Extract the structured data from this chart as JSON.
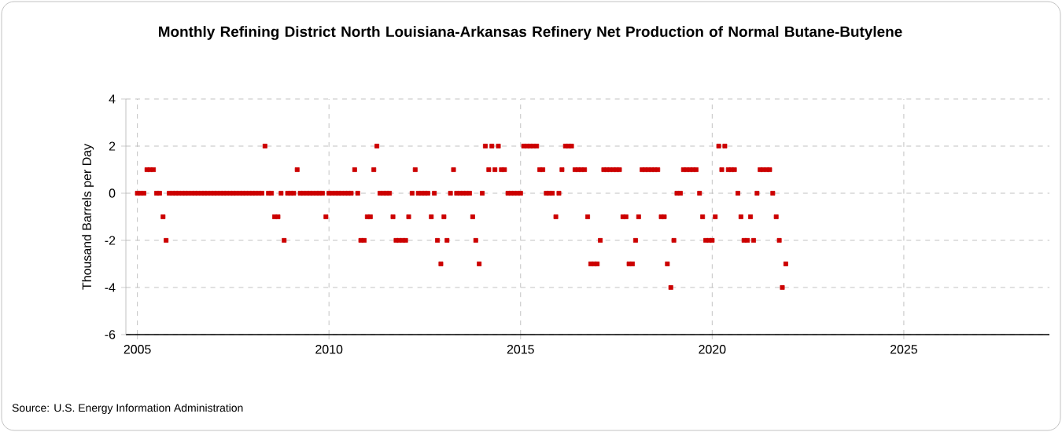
{
  "chart_data": {
    "type": "scatter",
    "title": "Monthly Refining District North Louisiana-Arkansas Refinery Net Production of Normal Butane-Butylene",
    "ylabel": "Thousand Barrels per Day",
    "annotations": [
      "Source: U.S. Energy Information Administration"
    ],
    "x": [
      2005.0,
      2005.08,
      2005.17,
      2005.25,
      2005.33,
      2005.42,
      2005.5,
      2005.58,
      2005.67,
      2005.75,
      2005.83,
      2005.92,
      2006.0,
      2006.08,
      2006.17,
      2006.25,
      2006.33,
      2006.42,
      2006.5,
      2006.58,
      2006.67,
      2006.75,
      2006.83,
      2006.92,
      2007.0,
      2007.08,
      2007.17,
      2007.25,
      2007.33,
      2007.42,
      2007.5,
      2007.58,
      2007.67,
      2007.75,
      2007.83,
      2007.92,
      2008.0,
      2008.08,
      2008.17,
      2008.25,
      2008.33,
      2008.42,
      2008.5,
      2008.58,
      2008.67,
      2008.75,
      2008.83,
      2008.92,
      2009.0,
      2009.08,
      2009.17,
      2009.25,
      2009.33,
      2009.42,
      2009.5,
      2009.58,
      2009.67,
      2009.75,
      2009.83,
      2009.92,
      2010.0,
      2010.08,
      2010.17,
      2010.25,
      2010.33,
      2010.42,
      2010.5,
      2010.58,
      2010.67,
      2010.75,
      2010.83,
      2010.92,
      2011.0,
      2011.08,
      2011.17,
      2011.25,
      2011.33,
      2011.42,
      2011.5,
      2011.58,
      2011.67,
      2011.75,
      2011.83,
      2011.92,
      2012.0,
      2012.08,
      2012.17,
      2012.25,
      2012.33,
      2012.42,
      2012.5,
      2012.58,
      2012.67,
      2012.75,
      2012.83,
      2012.92,
      2013.0,
      2013.08,
      2013.17,
      2013.25,
      2013.33,
      2013.42,
      2013.5,
      2013.58,
      2013.67,
      2013.75,
      2013.83,
      2013.92,
      2014.0,
      2014.08,
      2014.17,
      2014.25,
      2014.33,
      2014.42,
      2014.5,
      2014.58,
      2014.67,
      2014.75,
      2014.83,
      2014.92,
      2015.0,
      2015.08,
      2015.17,
      2015.25,
      2015.33,
      2015.42,
      2015.5,
      2015.58,
      2015.67,
      2015.75,
      2015.83,
      2015.92,
      2016.0,
      2016.08,
      2016.17,
      2016.25,
      2016.33,
      2016.42,
      2016.5,
      2016.58,
      2016.67,
      2016.75,
      2016.83,
      2016.92,
      2017.0,
      2017.08,
      2017.17,
      2017.25,
      2017.33,
      2017.42,
      2017.5,
      2017.58,
      2017.67,
      2017.75,
      2017.83,
      2017.92,
      2018.0,
      2018.08,
      2018.17,
      2018.25,
      2018.33,
      2018.42,
      2018.5,
      2018.58,
      2018.67,
      2018.75,
      2018.83,
      2018.92,
      2019.0,
      2019.08,
      2019.17,
      2019.25,
      2019.33,
      2019.42,
      2019.5,
      2019.58,
      2019.67,
      2019.75,
      2019.83,
      2019.92,
      2020.0,
      2020.08,
      2020.17,
      2020.25,
      2020.33,
      2020.42,
      2020.5,
      2020.58,
      2020.67,
      2020.75,
      2020.83,
      2020.92,
      2021.0,
      2021.08,
      2021.17,
      2021.25,
      2021.33,
      2021.42,
      2021.5,
      2021.58,
      2021.67,
      2021.75,
      2021.83,
      2021.92
    ],
    "values": [
      0,
      0,
      0,
      1,
      1,
      1,
      0,
      0,
      -1,
      -2,
      0,
      0,
      0,
      0,
      0,
      0,
      0,
      0,
      0,
      0,
      0,
      0,
      0,
      0,
      0,
      0,
      0,
      0,
      0,
      0,
      0,
      0,
      0,
      0,
      0,
      0,
      0,
      0,
      0,
      0,
      2,
      0,
      0,
      -1,
      -1,
      0,
      -2,
      0,
      0,
      0,
      1,
      0,
      0,
      0,
      0,
      0,
      0,
      0,
      0,
      -1,
      0,
      0,
      0,
      0,
      0,
      0,
      0,
      0,
      1,
      0,
      -2,
      -2,
      -1,
      -1,
      1,
      2,
      0,
      0,
      0,
      0,
      -1,
      -2,
      -2,
      -2,
      -2,
      -1,
      0,
      1,
      0,
      0,
      0,
      0,
      -1,
      0,
      -2,
      -3,
      -1,
      -2,
      0,
      1,
      0,
      0,
      0,
      0,
      0,
      -1,
      -2,
      -3,
      0,
      2,
      1,
      2,
      1,
      2,
      1,
      1,
      0,
      0,
      0,
      0,
      0,
      2,
      2,
      2,
      2,
      2,
      1,
      1,
      0,
      0,
      0,
      -1,
      0,
      1,
      2,
      2,
      2,
      1,
      1,
      1,
      1,
      -1,
      -3,
      -3,
      -3,
      -2,
      1,
      1,
      1,
      1,
      1,
      1,
      -1,
      -1,
      -3,
      -3,
      -2,
      -1,
      1,
      1,
      1,
      1,
      1,
      1,
      -1,
      -1,
      -3,
      -4,
      -2,
      0,
      0,
      1,
      1,
      1,
      1,
      1,
      0,
      -1,
      -2,
      -2,
      -2,
      -1,
      2,
      1,
      2,
      1,
      1,
      1,
      0,
      -1,
      -2,
      -2,
      -1,
      -2,
      0,
      1,
      1,
      1,
      1,
      0,
      -1,
      -2,
      -4,
      -3
    ],
    "color": "#cc0000",
    "marker": "square",
    "grid": true,
    "xlim": [
      2004.7,
      2028.8
    ],
    "ylim": [
      -6,
      4
    ],
    "xticks": [
      2005,
      2010,
      2015,
      2020,
      2025
    ],
    "yticks": [
      -6,
      -4,
      -2,
      0,
      2,
      4
    ]
  }
}
